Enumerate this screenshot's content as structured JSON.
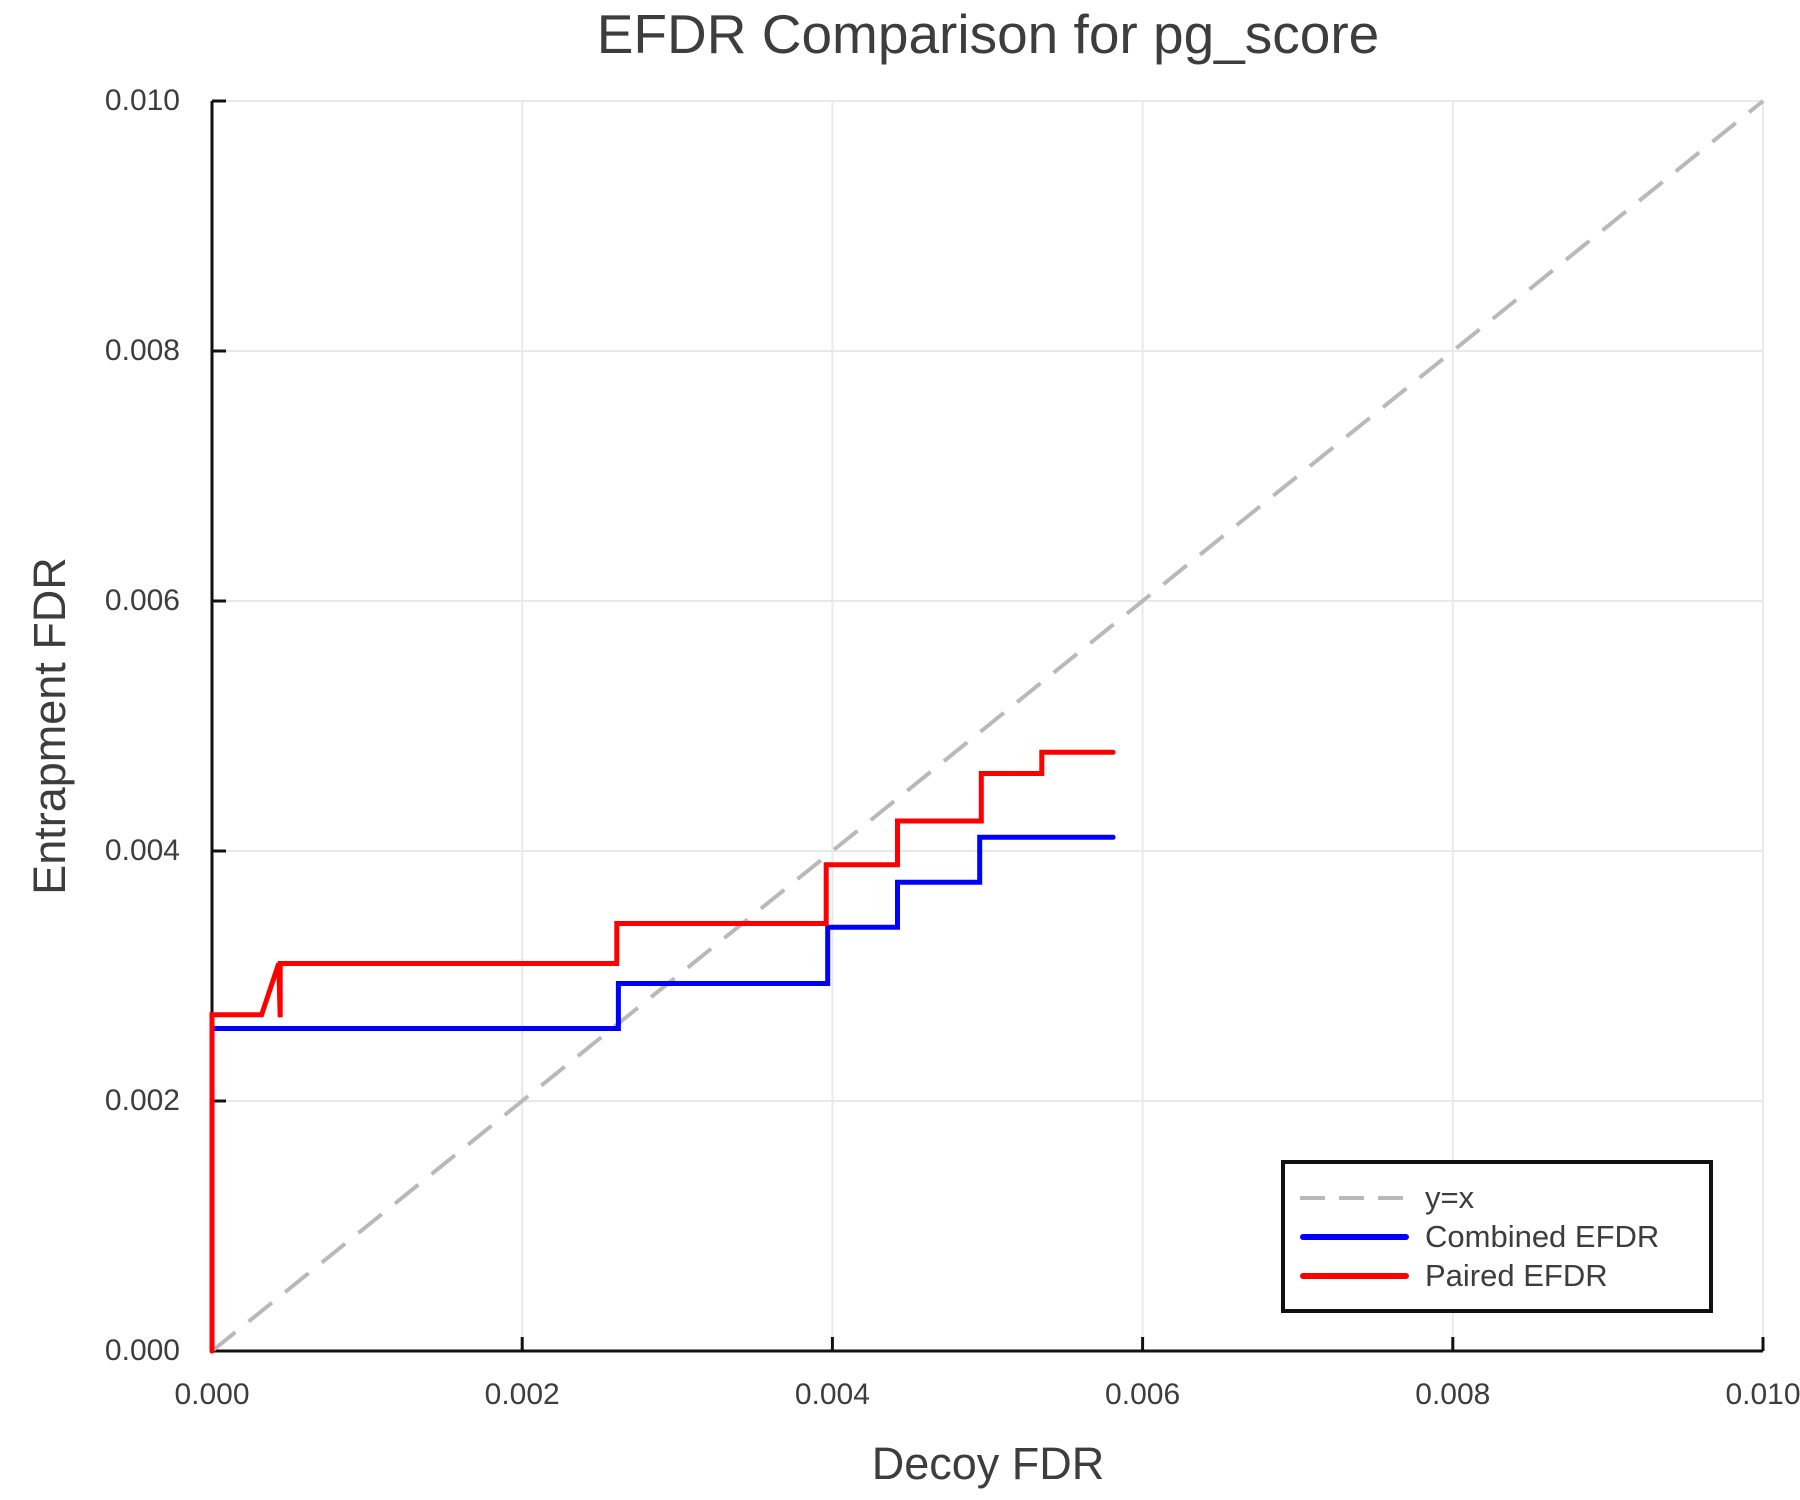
{
  "title": "EFDR Comparison for pg_score",
  "colors": {
    "identity_line": "#b9b9b9",
    "combined_efdr": "#0000ff",
    "paired_efdr": "#ff0000",
    "grid": "#e9e9e9",
    "spine": "#111111",
    "text": "#3d3d3d",
    "background": "#ffffff"
  },
  "chart_data": {
    "type": "line",
    "title": "EFDR Comparison for pg_score",
    "xlabel": "Decoy FDR",
    "ylabel": "Entrapment FDR",
    "xlim": [
      0,
      0.01
    ],
    "ylim": [
      0,
      0.01
    ],
    "xticks": [
      0,
      0.002,
      0.004,
      0.006,
      0.008,
      0.01
    ],
    "xtick_labels": [
      "0.000",
      "0.002",
      "0.004",
      "0.006",
      "0.008",
      "0.010"
    ],
    "yticks": [
      0,
      0.002,
      0.004,
      0.006,
      0.008,
      0.01
    ],
    "ytick_labels": [
      "0.000",
      "0.002",
      "0.004",
      "0.006",
      "0.008",
      "0.010"
    ],
    "grid": true,
    "legend_position": "lower right",
    "series": [
      {
        "name": "y=x",
        "style": "dashed",
        "color": "#b9b9b9",
        "width": 4,
        "points": [
          [
            0,
            0
          ],
          [
            0.01,
            0.01
          ]
        ]
      },
      {
        "name": "Combined EFDR",
        "style": "solid",
        "color": "#0000ff",
        "width": 5,
        "points": [
          [
            0,
            0
          ],
          [
            0,
            0.00258
          ],
          [
            0.00262,
            0.00258
          ],
          [
            0.00262,
            0.00294
          ],
          [
            0.00397,
            0.00294
          ],
          [
            0.00397,
            0.00339
          ],
          [
            0.00442,
            0.00339
          ],
          [
            0.00442,
            0.00375
          ],
          [
            0.00495,
            0.00375
          ],
          [
            0.00495,
            0.00411
          ],
          [
            0.00581,
            0.00411
          ]
        ]
      },
      {
        "name": "Paired EFDR",
        "style": "solid",
        "color": "#ff0000",
        "width": 5,
        "points": [
          [
            0,
            0
          ],
          [
            0,
            0.00269
          ],
          [
            0.00032,
            0.00269
          ],
          [
            0.00043,
            0.0031
          ],
          [
            0.00044,
            0.00267
          ],
          [
            0.00044,
            0.0031
          ],
          [
            0.00261,
            0.0031
          ],
          [
            0.00261,
            0.00342
          ],
          [
            0.00396,
            0.00342
          ],
          [
            0.00396,
            0.00389
          ],
          [
            0.00442,
            0.00389
          ],
          [
            0.00442,
            0.00424
          ],
          [
            0.00496,
            0.00424
          ],
          [
            0.00496,
            0.00462
          ],
          [
            0.00535,
            0.00462
          ],
          [
            0.00535,
            0.00479
          ],
          [
            0.00581,
            0.00479
          ]
        ]
      }
    ]
  }
}
